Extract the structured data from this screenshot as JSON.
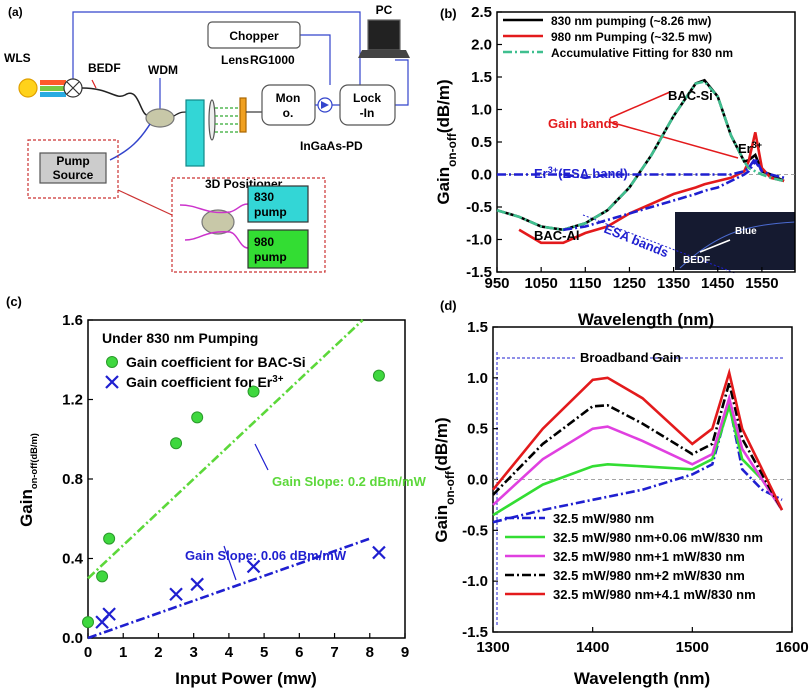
{
  "diagram": {
    "panel": "(a)",
    "chopper": "Chopper",
    "pc": "PC",
    "wls": "WLS",
    "bedf": "BEDF",
    "wdm": "WDM",
    "lens": "Lens",
    "rg": "RG1000",
    "mono": [
      "Mon",
      "o."
    ],
    "lockin": [
      "Lock",
      "-In"
    ],
    "pd": "InGaAs-PD",
    "positioner": "3D Positioner",
    "pump_source": [
      "Pump",
      "Source"
    ],
    "pump830": [
      "830",
      "pump"
    ],
    "pump980": [
      "980",
      "pump"
    ]
  },
  "chart_data": [
    {
      "type": "line",
      "title": "(b)",
      "xlabel": "Wavelength (nm)",
      "ylabel": {
        "main": "Gain",
        "sub": "on-off",
        "unit": "(dB/m)"
      },
      "xlim": [
        950,
        1625
      ],
      "xticks": [
        950,
        1050,
        1150,
        1250,
        1350,
        1450,
        1550
      ],
      "ylim": [
        -1.5,
        2.5
      ],
      "yticks": [
        -1.5,
        {
          "value": -1,
          "label": "-1.0"
        },
        -0.5,
        {
          "value": 0,
          "label": "0.0"
        },
        0.5,
        {
          "value": 1,
          "label": "1.0"
        },
        1.5,
        {
          "value": 2,
          "label": "2.0"
        },
        2.5
      ],
      "x": [
        950,
        1000,
        1050,
        1100,
        1150,
        1200,
        1250,
        1300,
        1350,
        1400,
        1420,
        1450,
        1480,
        1510,
        1520,
        1535,
        1550,
        1570,
        1600
      ],
      "series": [
        {
          "name": "830 nm pumping (~8.26 mw)",
          "color": "#000000",
          "style": "solid",
          "values": [
            -0.55,
            -0.65,
            -0.8,
            -0.85,
            -0.75,
            -0.55,
            -0.2,
            0.3,
            0.9,
            1.4,
            1.45,
            1.2,
            0.6,
            0.2,
            0.22,
            0.3,
            0.05,
            0.0,
            -0.1
          ]
        },
        {
          "name": "980 nm Pumping (~32.5 mw)",
          "color": "#e31a1c",
          "style": "solid",
          "values": [
            null,
            -0.85,
            -1.05,
            -1.05,
            -0.9,
            -0.8,
            -0.6,
            -0.45,
            -0.3,
            -0.2,
            -0.15,
            -0.1,
            -0.05,
            0.05,
            0.2,
            0.65,
            0.1,
            -0.05,
            -0.1
          ]
        },
        {
          "name": "Accumulative Fitting for 830 nm",
          "color": "#3fbf8f",
          "style": "dashdot",
          "values": [
            -0.55,
            -0.65,
            -0.8,
            -0.85,
            -0.75,
            -0.55,
            -0.2,
            0.3,
            0.9,
            1.4,
            1.43,
            1.2,
            0.6,
            0.2,
            0.1,
            0.05,
            0.0,
            -0.05,
            -0.1
          ]
        },
        {
          "color": "#1f1fd0",
          "style": "dashdot",
          "values": [
            0,
            0,
            0,
            0,
            -0.05,
            0,
            0,
            0,
            0,
            0,
            0,
            0,
            0,
            0.05,
            0.1,
            0.25,
            0.05,
            0,
            -0.05
          ]
        },
        {
          "color": "#1f1fd0",
          "style": "dashdot",
          "values": [
            null,
            null,
            null,
            -0.85,
            -0.8,
            -0.7,
            -0.6,
            -0.5,
            -0.4,
            -0.3,
            -0.25,
            -0.2,
            -0.1,
            0.0,
            0.05,
            0.2,
            0.05,
            null,
            null
          ]
        }
      ],
      "annotations": [
        {
          "text": "BAC-Si",
          "color": "#000000"
        },
        {
          "text": "Gain bands",
          "color": "#e31a1c"
        },
        {
          "text": "Er",
          "sup": "3+",
          "color": "#000000"
        },
        {
          "text": "Er",
          "sup": "3+",
          "after": "(ESA band)",
          "color": "#1f1fd0"
        },
        {
          "text": "BAC-Al",
          "color": "#000000"
        },
        {
          "text": "ESA bands",
          "color": "#1f1fd0"
        },
        {
          "text": "Blue",
          "color": "#ffffff"
        },
        {
          "text": "BEDF",
          "color": "#ffffff"
        }
      ]
    },
    {
      "type": "scatter",
      "title": "(c)",
      "xlabel": "Input Power (mw)",
      "ylabel": {
        "main": "Gain",
        "sub": "on-off",
        "unit": "(dB/m)"
      },
      "xlim": [
        0,
        9
      ],
      "xticks": [
        0,
        1,
        2,
        3,
        4,
        5,
        6,
        7,
        8,
        9
      ],
      "ylim": [
        0,
        1.6
      ],
      "yticks": [
        {
          "value": 0,
          "label": "0.0"
        },
        0.4,
        0.8,
        1.2,
        1.6
      ],
      "legend_title": "Under 830 nm Pumping",
      "series": [
        {
          "name": "Gain coefficient for BAC-Si",
          "color": "#3fd83f",
          "marker": "circle",
          "x": [
            0,
            0.4,
            0.6,
            2.5,
            3.1,
            4.7,
            8.26
          ],
          "values": [
            0.08,
            0.31,
            0.5,
            0.98,
            1.11,
            1.24,
            1.32
          ]
        },
        {
          "name": "Gain coefficient for Er",
          "name_sup": "3+",
          "color": "#1f1fd0",
          "marker": "x",
          "x": [
            0.4,
            0.6,
            2.5,
            3.1,
            4.7,
            8.26
          ],
          "values": [
            0.08,
            0.12,
            0.22,
            0.27,
            0.36,
            0.43
          ]
        }
      ],
      "fits": [
        {
          "color": "#5cd83a",
          "x": [
            0,
            7.8
          ],
          "values": [
            0.3,
            1.6
          ]
        },
        {
          "color": "#1f1fd0",
          "x": [
            0,
            8
          ],
          "values": [
            0,
            0.5
          ]
        }
      ],
      "annotations": [
        {
          "text": "Gain Slope: 0.2 dBm/mW",
          "color": "#5cd83a"
        },
        {
          "text": "Gain Slope: 0.06 dBm/mW",
          "color": "#1f1fd0"
        }
      ]
    },
    {
      "type": "line",
      "title": "(d)",
      "xlabel": "Wavelength (nm)",
      "ylabel": {
        "main": "Gain",
        "sub": "on-off",
        "unit": "(dB/m)"
      },
      "xlim": [
        1300,
        1600
      ],
      "xticks": [
        1300,
        1400,
        1500,
        1600
      ],
      "ylim": [
        -1.5,
        1.5
      ],
      "yticks": [
        -1.5,
        {
          "value": -1,
          "label": "-1.0"
        },
        -0.5,
        {
          "value": 0,
          "label": "0.0"
        },
        0.5,
        {
          "value": 1,
          "label": "1.0"
        },
        1.5
      ],
      "x": [
        1300,
        1350,
        1400,
        1415,
        1450,
        1500,
        1520,
        1537,
        1550,
        1570,
        1590
      ],
      "series": [
        {
          "name": "32.5 mW/980 nm",
          "color": "#1f1fd0",
          "style": "dashdot",
          "values": [
            -0.42,
            -0.3,
            -0.2,
            -0.17,
            -0.1,
            0.05,
            0.15,
            0.75,
            0.1,
            -0.1,
            -0.2
          ]
        },
        {
          "name": "32.5 mW/980 nm+0.06 mW/830 nm",
          "color": "#33dd33",
          "style": "solid",
          "values": [
            -0.35,
            -0.05,
            0.13,
            0.15,
            0.13,
            0.1,
            0.2,
            0.72,
            0.2,
            0.0,
            -0.3
          ]
        },
        {
          "name": "32.5 mW/980 nm+1 mW/830 nm",
          "color": "#e040e0",
          "style": "solid",
          "values": [
            -0.25,
            0.2,
            0.5,
            0.52,
            0.38,
            0.15,
            0.25,
            0.8,
            0.3,
            0.0,
            -0.3
          ]
        },
        {
          "name": "32.5 mW/980 nm+2 mW/830 nm",
          "color": "#000000",
          "style": "dashdot",
          "values": [
            -0.15,
            0.35,
            0.72,
            0.73,
            0.55,
            0.25,
            0.35,
            0.95,
            0.4,
            0.05,
            -0.3
          ]
        },
        {
          "name": "32.5 mW/980 nm+4.1 mW/830 nm",
          "color": "#e31a1c",
          "style": "solid",
          "values": [
            -0.1,
            0.5,
            0.98,
            1.0,
            0.8,
            0.35,
            0.5,
            1.05,
            0.5,
            0.1,
            -0.3
          ]
        }
      ],
      "annotations": [
        {
          "text": "Broadband Gain",
          "color": "#000000"
        }
      ]
    }
  ]
}
